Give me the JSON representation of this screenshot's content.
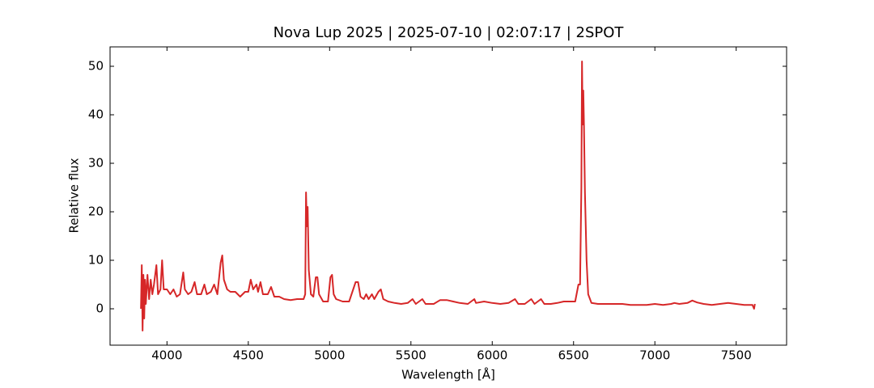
{
  "chart_data": {
    "type": "line",
    "title": "Nova Lup 2025 | 2025-07-10 | 02:07:17 | 2SPOT",
    "x_label": "Wavelength [Å]",
    "y_label": "Relative flux",
    "xlim": [
      3650,
      7810
    ],
    "ylim": [
      -7.5,
      54
    ],
    "xticks": [
      4000,
      4500,
      5000,
      5500,
      6000,
      6500,
      7000,
      7500
    ],
    "yticks": [
      0,
      10,
      20,
      30,
      40,
      50
    ],
    "series": [
      {
        "color": "#d62728",
        "x": [
          3840,
          3845,
          3850,
          3855,
          3860,
          3865,
          3870,
          3880,
          3890,
          3900,
          3910,
          3920,
          3935,
          3945,
          3960,
          3970,
          3980,
          4000,
          4020,
          4040,
          4060,
          4080,
          4100,
          4110,
          4130,
          4150,
          4170,
          4185,
          4210,
          4230,
          4245,
          4270,
          4290,
          4310,
          4330,
          4340,
          4350,
          4370,
          4390,
          4420,
          4450,
          4480,
          4500,
          4515,
          4530,
          4550,
          4560,
          4575,
          4590,
          4620,
          4640,
          4660,
          4690,
          4720,
          4760,
          4800,
          4840,
          4850,
          4855,
          4860,
          4865,
          4872,
          4885,
          4900,
          4915,
          4925,
          4935,
          4960,
          4990,
          5005,
          5015,
          5025,
          5040,
          5080,
          5120,
          5160,
          5175,
          5190,
          5210,
          5225,
          5240,
          5260,
          5275,
          5300,
          5315,
          5330,
          5360,
          5400,
          5440,
          5480,
          5510,
          5530,
          5570,
          5590,
          5640,
          5680,
          5720,
          5760,
          5800,
          5850,
          5890,
          5900,
          5950,
          6000,
          6050,
          6100,
          6140,
          6160,
          6200,
          6240,
          6260,
          6300,
          6320,
          6360,
          6400,
          6440,
          6480,
          6510,
          6530,
          6540,
          6548,
          6552,
          6556,
          6560,
          6564,
          6570,
          6580,
          6590,
          6610,
          6650,
          6700,
          6750,
          6800,
          6850,
          6900,
          6950,
          7000,
          7050,
          7100,
          7120,
          7150,
          7200,
          7230,
          7260,
          7300,
          7350,
          7400,
          7450,
          7500,
          7550,
          7600,
          7610,
          7615
        ],
        "values": [
          0,
          9,
          -4.5,
          7,
          -2,
          6,
          1,
          7,
          2,
          6,
          3,
          5,
          9,
          3,
          4,
          10,
          4,
          4,
          3,
          4,
          2.5,
          3,
          7.5,
          4,
          3,
          3.5,
          5.5,
          3,
          3,
          5,
          3,
          3.5,
          5,
          3,
          9.5,
          11,
          6,
          4,
          3.5,
          3.5,
          2.5,
          3.5,
          3.5,
          6,
          4,
          5,
          3.5,
          5.5,
          3,
          3,
          4.5,
          2.5,
          2.5,
          2,
          1.8,
          2,
          2,
          3,
          24,
          17,
          21,
          8,
          3,
          2.5,
          6.5,
          6.5,
          3,
          1.5,
          1.5,
          6.5,
          7,
          3,
          2,
          1.5,
          1.5,
          5.5,
          5.5,
          2.5,
          2,
          3,
          2,
          3,
          2,
          3.5,
          4,
          2,
          1.5,
          1.2,
          1,
          1.2,
          2,
          1,
          2,
          1,
          1,
          1.8,
          1.8,
          1.5,
          1.2,
          1,
          2,
          1.2,
          1.5,
          1.2,
          1,
          1.2,
          2,
          1,
          1,
          2,
          1,
          2,
          1,
          1,
          1.2,
          1.5,
          1.5,
          1.5,
          5,
          5,
          25,
          51,
          38,
          45,
          38,
          24,
          10,
          3,
          1.2,
          1,
          1,
          1,
          1,
          0.8,
          0.8,
          0.8,
          1,
          0.8,
          1,
          1.2,
          1,
          1.2,
          1.7,
          1.3,
          1,
          0.8,
          1,
          1.2,
          1,
          0.8,
          0.8,
          0,
          1
        ]
      }
    ]
  }
}
